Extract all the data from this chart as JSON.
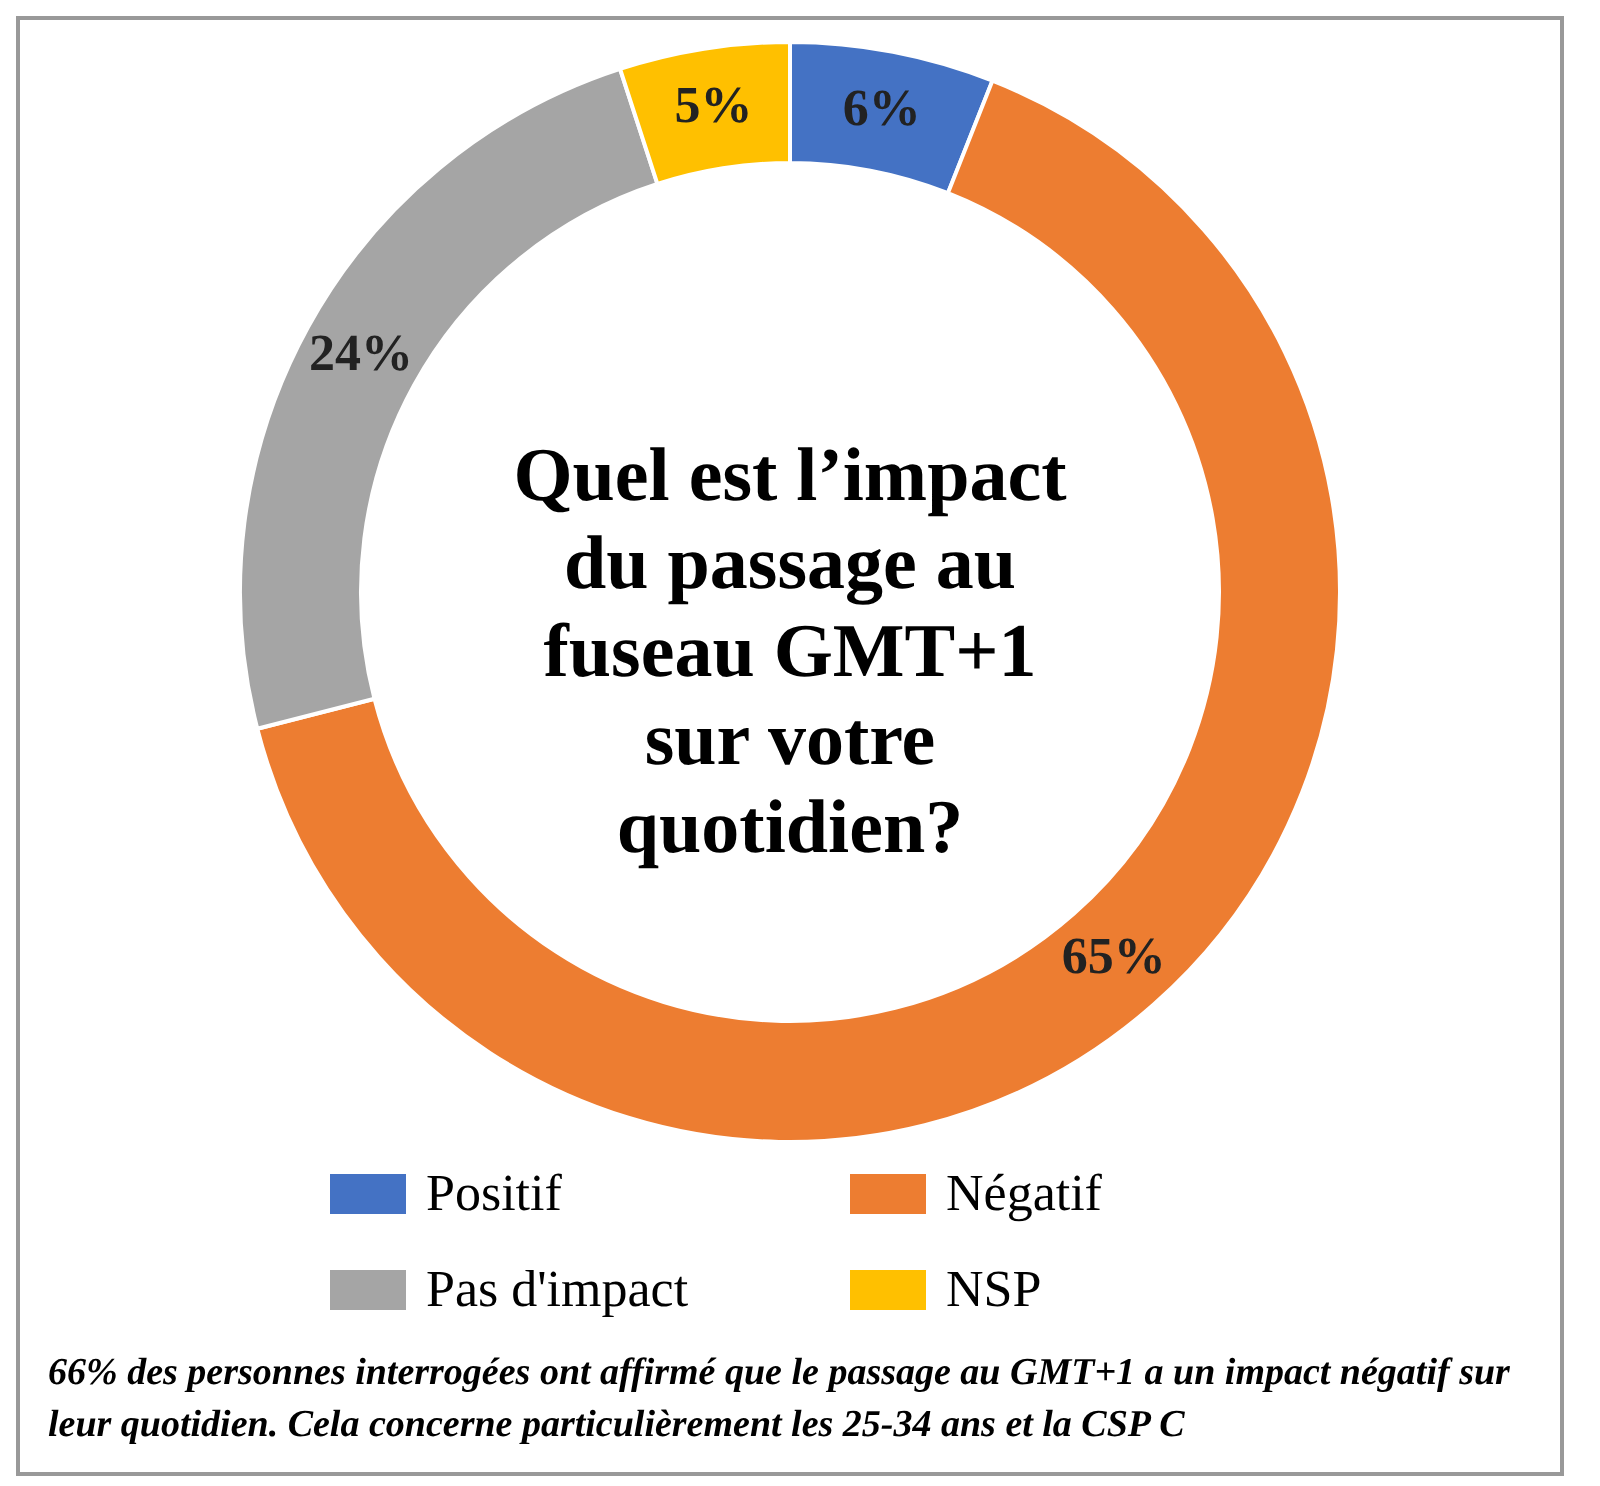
{
  "chart_data": {
    "type": "donut",
    "title": "Quel est l’impact du passage au fuseau GMT+1 sur votre quotidien?",
    "categories": [
      "Positif",
      "Négatif",
      "Pas d'impact",
      "NSP"
    ],
    "values": [
      6,
      65,
      24,
      5
    ],
    "colors": [
      "#4472c4",
      "#ed7d31",
      "#a5a5a5",
      "#ffc000"
    ],
    "value_labels": [
      "6%",
      "65%",
      "24%",
      "5%"
    ],
    "legend": "bottom",
    "annotations": [
      "66% des personnes interrogées ont affirmé que le passage au GMT+1 a un impact négatif sur leur quotidien. Cela concerne particulièrement les 25-34 ans et la CSP C"
    ]
  }
}
